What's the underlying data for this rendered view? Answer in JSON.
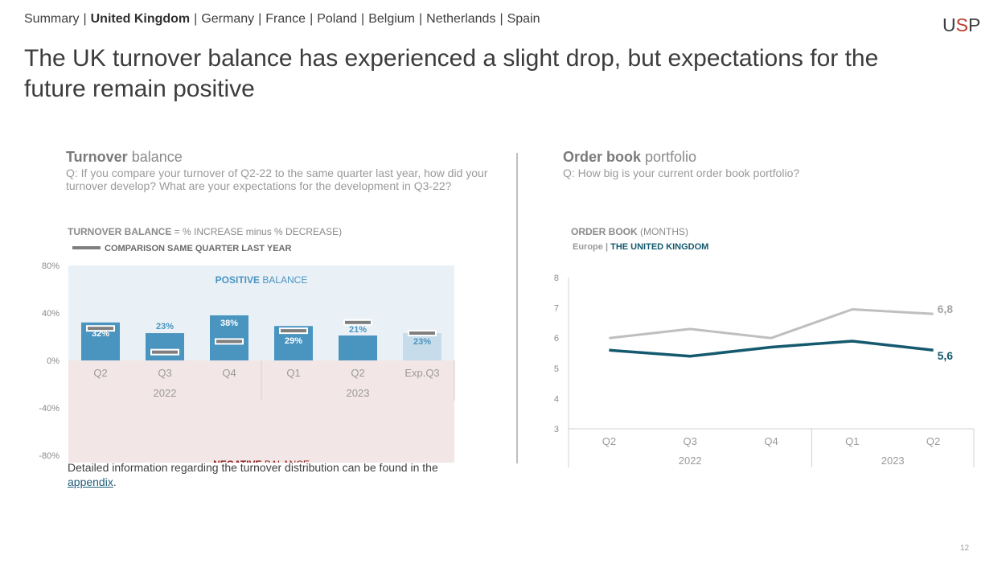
{
  "nav": {
    "tabs": [
      {
        "label": "Summary",
        "active": false
      },
      {
        "label": "United Kingdom",
        "active": true
      },
      {
        "label": "Germany",
        "active": false
      },
      {
        "label": "France",
        "active": false
      },
      {
        "label": "Poland",
        "active": false
      },
      {
        "label": "Belgium",
        "active": false
      },
      {
        "label": "Netherlands",
        "active": false
      },
      {
        "label": "Spain",
        "active": false
      }
    ],
    "separator": "|"
  },
  "logo": {
    "text_a": "U",
    "text_s": "S",
    "text_b": "P"
  },
  "headline": "The UK turnover balance has experienced a slight drop, but expectations for the future remain positive",
  "left_panel": {
    "title_bold": "Turnover",
    "title_rest": " balance",
    "question": "Q: If you compare your turnover of Q2-22 to the same quarter last year, how did your turnover develop? What are your expectations for the development in Q3-22?"
  },
  "right_panel": {
    "title_bold": "Order book",
    "title_rest": " portfolio",
    "question": "Q: How big is your current order book portfolio?"
  },
  "footnote": {
    "text": "Detailed information regarding the turnover distribution can be found in the ",
    "link": "appendix",
    "end": "."
  },
  "page_number": "12",
  "colors": {
    "bar": "#4a94c0",
    "bar_expected": "#c6dcea",
    "positive_bg": "#e9f1f7",
    "negative_bg": "#f3e6e6",
    "positive_text": "#4a94c0",
    "negative_text": "#8b1a1a",
    "europe_line": "#bfbfbf",
    "uk_line": "#14596e"
  },
  "chart_data": [
    {
      "type": "bar",
      "title_bold": "TURNOVER BALANCE",
      "title_rest": " = % INCREASE minus % DECREASE)",
      "legend": "COMPARISON SAME QUARTER LAST YEAR",
      "positive_label_bold": "POSITIVE",
      "positive_label_rest": " BALANCE",
      "negative_label_bold": "NEGATIVE",
      "negative_label_rest": " BALANCE",
      "categories": [
        "Q2",
        "Q3",
        "Q4",
        "Q1",
        "Q2",
        "Exp.Q3"
      ],
      "years": [
        "2022",
        "2023"
      ],
      "values": [
        32,
        23,
        38,
        29,
        21,
        23
      ],
      "value_labels": [
        "32%",
        "23%",
        "38%",
        "29%",
        "21%",
        "23%"
      ],
      "comparison": [
        27,
        7,
        16,
        25,
        32,
        23
      ],
      "expected_index": 5,
      "ylim": [
        -80,
        80
      ],
      "yticks": [
        80,
        40,
        0,
        -40,
        -80
      ],
      "ytick_labels": [
        "80%",
        "40%",
        "0%",
        "-40%",
        "-80%"
      ]
    },
    {
      "type": "line",
      "title_bold": "ORDER BOOK",
      "title_rest": " (MONTHS)",
      "legend_europe": "Europe",
      "legend_sep": " | ",
      "legend_uk": "THE UNITED KINGDOM",
      "categories": [
        "Q2",
        "Q3",
        "Q4",
        "Q1",
        "Q2"
      ],
      "years": [
        "2022",
        "2023"
      ],
      "series": [
        {
          "name": "Europe",
          "values": [
            6.0,
            6.3,
            6.0,
            6.95,
            6.8
          ]
        },
        {
          "name": "THE UNITED KINGDOM",
          "values": [
            5.6,
            5.4,
            5.7,
            5.9,
            5.6
          ]
        }
      ],
      "end_labels": [
        "6,8",
        "5,6"
      ],
      "ylim": [
        3,
        8
      ],
      "yticks": [
        "3",
        "4",
        "5",
        "6",
        "7",
        "8"
      ]
    }
  ]
}
